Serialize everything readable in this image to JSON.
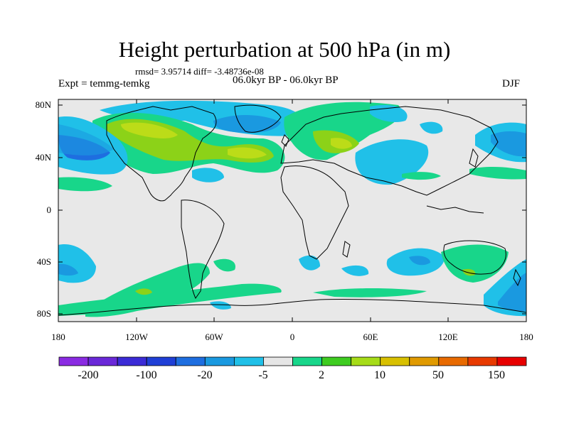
{
  "title": "Height perturbation at 500 hPa (in m)",
  "stats": "rmsd= 3.95714 diff= -3.48736e-08",
  "period": "06.0kyr BP - 06.0kyr BP",
  "experiment": "Expt = temmg-temkg",
  "season": "DJF",
  "lat_labels": [
    "80N",
    "40N",
    "0",
    "40S",
    "80S"
  ],
  "lon_labels": [
    "180",
    "120W",
    "60W",
    "0",
    "60E",
    "120E",
    "180"
  ],
  "colorbar": {
    "labels": [
      "-200",
      "-100",
      "-20",
      "-5",
      "2",
      "10",
      "50",
      "150"
    ],
    "colors": [
      "#8a2be2",
      "#6a28d8",
      "#3b2bd6",
      "#1f3fd6",
      "#1e6ee0",
      "#1a99e0",
      "#20c0e8",
      "#e6e6e6",
      "#18d68a",
      "#3ecc20",
      "#a6dc18",
      "#d8c000",
      "#e09a00",
      "#e86a00",
      "#e83a00",
      "#e80000"
    ]
  },
  "colors": {
    "background": "#e8e8e8",
    "positive_low": "#18d68a",
    "positive_mid": "#8cd218",
    "positive_high": "#bcdc18",
    "negative_low": "#20c0e8",
    "negative_mid": "#1a99e0",
    "negative_high": "#1e6ee0"
  }
}
